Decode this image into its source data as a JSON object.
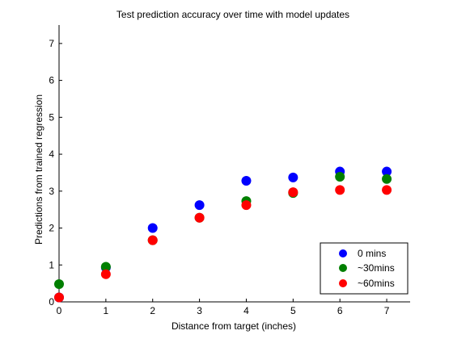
{
  "chart_data": {
    "type": "scatter",
    "title": "Test prediction accuracy over time with model updates",
    "xlabel": "Distance from target (inches)",
    "ylabel": "Predictions from trained regression",
    "xlim": [
      0,
      7.5
    ],
    "ylim": [
      0,
      7.5
    ],
    "xticks": [
      "0",
      "1",
      "2",
      "3",
      "4",
      "5",
      "6",
      "7"
    ],
    "yticks": [
      "0",
      "1",
      "2",
      "3",
      "4",
      "5",
      "6",
      "7"
    ],
    "grid": false,
    "legend_position": "bottom-right",
    "series": [
      {
        "name": "0 mins",
        "color": "#0000ff",
        "x": [
          0,
          1,
          2,
          3,
          4,
          5,
          6,
          7
        ],
        "y": [
          0.12,
          0.93,
          2.0,
          2.62,
          3.28,
          3.37,
          3.53,
          3.53
        ]
      },
      {
        "name": "~30mins",
        "color": "#007f00",
        "x": [
          0,
          1,
          2,
          3,
          4,
          5,
          6,
          7
        ],
        "y": [
          0.48,
          0.95,
          1.67,
          2.28,
          2.73,
          2.95,
          3.39,
          3.33
        ]
      },
      {
        "name": "~60mins",
        "color": "#ff0000",
        "x": [
          0,
          1,
          2,
          3,
          4,
          5,
          6,
          7
        ],
        "y": [
          0.12,
          0.75,
          1.67,
          2.28,
          2.62,
          2.97,
          3.03,
          3.03
        ]
      }
    ]
  }
}
